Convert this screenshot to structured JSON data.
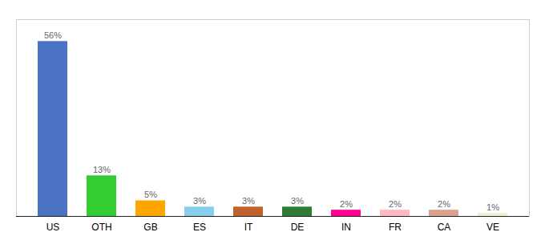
{
  "chart_data": {
    "type": "bar",
    "categories": [
      "US",
      "OTH",
      "GB",
      "ES",
      "IT",
      "DE",
      "IN",
      "FR",
      "CA",
      "VE"
    ],
    "values": [
      56,
      13,
      5,
      3,
      3,
      3,
      2,
      2,
      2,
      1
    ],
    "value_labels": [
      "56%",
      "13%",
      "5%",
      "3%",
      "3%",
      "3%",
      "2%",
      "2%",
      "2%",
      "1%"
    ],
    "colors": [
      "#4C72C4",
      "#33CC33",
      "#FFA500",
      "#87CEEB",
      "#C0622B",
      "#2E7D32",
      "#FF0090",
      "#FFB6C1",
      "#D9A090",
      "#F0EDD0"
    ],
    "ylim": [
      0,
      63
    ],
    "data_labels": true,
    "tick_labels": "x",
    "grid": false
  }
}
